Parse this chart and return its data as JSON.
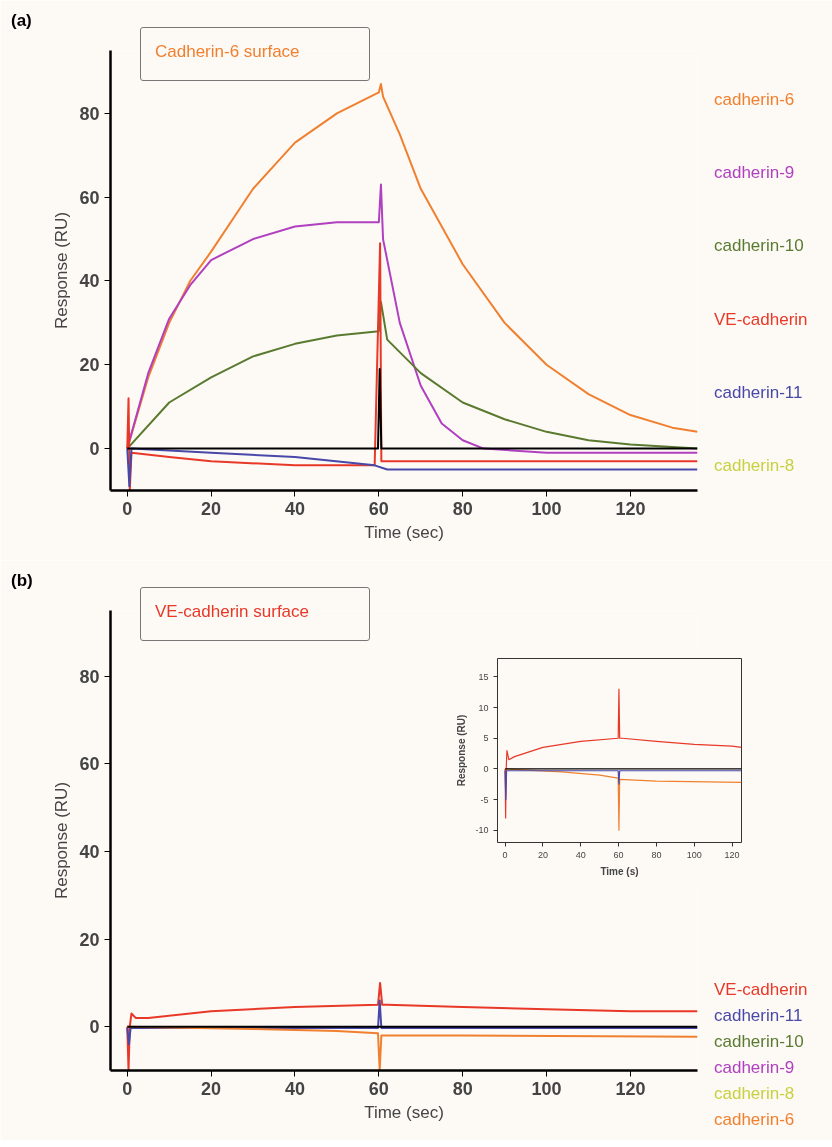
{
  "chart_data": [
    {
      "type": "line",
      "title": "(a)",
      "subtitle": "Cadherin-6 surface",
      "xlabel": "Time (sec)",
      "ylabel": "Response (RU)",
      "xlim": [
        -4,
        136
      ],
      "ylim": [
        -10,
        95
      ],
      "xticks": [
        0,
        20,
        40,
        60,
        80,
        100,
        120
      ],
      "yticks": [
        0,
        20,
        40,
        60,
        80
      ],
      "series": [
        {
          "name": "cadherin-6",
          "color": "#f08030",
          "x": [
            0,
            5,
            10,
            15,
            20,
            30,
            40,
            50,
            60,
            60.5,
            61,
            65,
            70,
            80,
            90,
            100,
            110,
            120,
            130,
            136
          ],
          "values": [
            0,
            17,
            30,
            40,
            47,
            62,
            73,
            80,
            85,
            87,
            84,
            75,
            62,
            44,
            30,
            20,
            13,
            8,
            5,
            4
          ]
        },
        {
          "name": "cadherin-9",
          "color": "#b040c0",
          "x": [
            0,
            5,
            10,
            15,
            20,
            30,
            40,
            50,
            60,
            60.5,
            61,
            65,
            70,
            75,
            80,
            85,
            100,
            136
          ],
          "values": [
            0,
            18,
            31,
            39,
            45,
            50,
            53,
            54,
            54,
            63,
            50,
            30,
            15,
            6,
            2,
            0,
            -1,
            -1
          ]
        },
        {
          "name": "cadherin-10",
          "color": "#5a7a30",
          "x": [
            0,
            10,
            20,
            30,
            40,
            50,
            60,
            60.5,
            62,
            70,
            80,
            90,
            100,
            110,
            120,
            136
          ],
          "values": [
            0,
            11,
            17,
            22,
            25,
            27,
            28,
            35,
            26,
            18,
            11,
            7,
            4,
            2,
            1,
            0
          ]
        },
        {
          "name": "VE-cadherin",
          "color": "#e83828",
          "x": [
            0,
            0.3,
            0.6,
            1,
            10,
            20,
            40,
            59,
            60.3,
            60.6,
            62,
            80,
            136
          ],
          "values": [
            0,
            12,
            -10,
            -1,
            -2,
            -3,
            -4,
            -4,
            49,
            -3,
            -3,
            -3,
            -3
          ]
        },
        {
          "name": "cadherin-11",
          "color": "#4848a8",
          "x": [
            0,
            0.5,
            1,
            20,
            40,
            59,
            62,
            80,
            136
          ],
          "values": [
            0,
            -9,
            0,
            -1,
            -2,
            -4,
            -5,
            -5,
            -5
          ]
        },
        {
          "name": "cadherin-8",
          "color": "#c8d040"
        },
        {
          "color": "#000000",
          "x": [
            0,
            59.8,
            60.2,
            60.6,
            136
          ],
          "values": [
            0,
            0,
            19,
            0,
            0
          ]
        }
      ]
    },
    {
      "type": "line",
      "title": "(b)",
      "subtitle": "VE-cadherin surface",
      "xlabel": "Time (sec)",
      "ylabel": "Response (RU)",
      "xlim": [
        -4,
        136
      ],
      "ylim": [
        -10,
        95
      ],
      "xticks": [
        0,
        20,
        40,
        60,
        80,
        100,
        120
      ],
      "yticks": [
        0,
        20,
        40,
        60,
        80
      ],
      "series": [
        {
          "name": "VE-cadherin",
          "color": "#e83828",
          "x": [
            0,
            0.3,
            0.6,
            1,
            2,
            5,
            20,
            40,
            59.8,
            60.3,
            60.8,
            62,
            80,
            100,
            120,
            136
          ],
          "values": [
            0,
            -10,
            0,
            3,
            2,
            2,
            3.5,
            4.5,
            5,
            10,
            5,
            5,
            4.5,
            4,
            3.5,
            3.5
          ]
        },
        {
          "name": "cadherin-11",
          "color": "#4848a8",
          "x": [
            0,
            0.4,
            0.8,
            59.8,
            60.2,
            60.6,
            136
          ],
          "values": [
            -0.3,
            -4,
            -0.3,
            -0.3,
            6,
            -0.3,
            -0.3
          ]
        },
        {
          "name": "cadherin-10",
          "color": "#5a7a30"
        },
        {
          "name": "cadherin-9",
          "color": "#b040c0"
        },
        {
          "name": "cadherin-8",
          "color": "#c8d040"
        },
        {
          "name": "cadherin-6",
          "color": "#f08030",
          "x": [
            0,
            30,
            50,
            59.8,
            60.2,
            60.6,
            80,
            136
          ],
          "values": [
            0,
            -0.5,
            -1,
            -1.5,
            -10,
            -2,
            -2,
            -2.3
          ]
        },
        {
          "color": "#000000",
          "x": [
            0,
            136
          ],
          "values": [
            0,
            0
          ]
        }
      ]
    },
    {
      "type": "line",
      "xlabel": "Time (s)",
      "ylabel": "Response (RU)",
      "xlim": [
        -4,
        125
      ],
      "ylim": [
        -12,
        18
      ],
      "xticks": [
        0,
        20,
        40,
        60,
        80,
        100,
        120
      ],
      "yticks": [
        -10,
        -5,
        0,
        5,
        10,
        15
      ],
      "series": [
        {
          "color": "#e83828",
          "x": [
            0,
            0.3,
            0.6,
            1,
            2,
            5,
            20,
            40,
            59.8,
            60.2,
            60.6,
            62,
            80,
            100,
            120,
            125
          ],
          "values": [
            0,
            -8,
            0,
            3,
            1.5,
            2,
            3.5,
            4.5,
            5,
            13,
            5,
            5,
            4.5,
            4,
            3.7,
            3.5
          ]
        },
        {
          "color": "#f08030",
          "x": [
            0,
            30,
            50,
            59.8,
            60.2,
            60.6,
            80,
            125
          ],
          "values": [
            0,
            -0.5,
            -1,
            -1.5,
            -10,
            -1.7,
            -2,
            -2.2
          ]
        },
        {
          "color": "#4848a8",
          "x": [
            0,
            0.4,
            0.8,
            59.8,
            60.2,
            60.6,
            125
          ],
          "values": [
            -0.3,
            -5,
            -0.3,
            -0.3,
            -2.5,
            -0.3,
            -0.3
          ]
        },
        {
          "color": "#000000",
          "x": [
            0,
            125
          ],
          "values": [
            0,
            0
          ]
        }
      ]
    }
  ]
}
